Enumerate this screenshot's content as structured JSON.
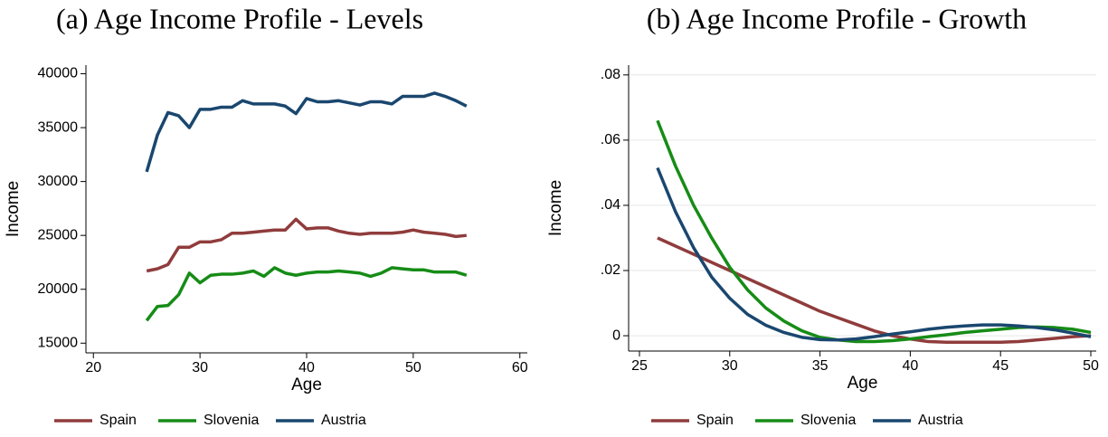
{
  "chart_data": [
    {
      "type": "line",
      "title": "(a) Age Income Profile - Levels",
      "x_label": "Age",
      "y_label": "Income",
      "x": [
        25,
        26,
        27,
        28,
        29,
        30,
        31,
        32,
        33,
        34,
        35,
        36,
        37,
        38,
        39,
        40,
        41,
        42,
        43,
        44,
        45,
        46,
        47,
        48,
        49,
        50,
        51,
        52,
        53,
        54,
        55
      ],
      "xlim": [
        19.3,
        60.7
      ],
      "xticks": [
        20,
        30,
        40,
        50,
        60
      ],
      "ylim": [
        14100,
        40800
      ],
      "yticks": [
        15000,
        20000,
        25000,
        30000,
        35000,
        40000
      ],
      "grid": false,
      "series": [
        {
          "name": "Spain",
          "color": "#903c3c",
          "values": [
            21700,
            21900,
            22300,
            23900,
            23900,
            24400,
            24400,
            24600,
            25200,
            25200,
            25300,
            25400,
            25500,
            25500,
            26500,
            25600,
            25700,
            25700,
            25400,
            25200,
            25100,
            25200,
            25200,
            25200,
            25300,
            25500,
            25300,
            25200,
            25100,
            24900,
            25000
          ]
        },
        {
          "name": "Slovenia",
          "color": "#168c16",
          "values": [
            17100,
            18400,
            18500,
            19500,
            21500,
            20600,
            21300,
            21400,
            21400,
            21500,
            21700,
            21200,
            22000,
            21500,
            21300,
            21500,
            21600,
            21600,
            21700,
            21600,
            21500,
            21200,
            21500,
            22000,
            21900,
            21800,
            21800,
            21600,
            21600,
            21600,
            21300
          ]
        },
        {
          "name": "Austria",
          "color": "#1a476f",
          "values": [
            30900,
            34300,
            36400,
            36100,
            35000,
            36700,
            36700,
            36900,
            36900,
            37500,
            37200,
            37200,
            37200,
            37000,
            36300,
            37700,
            37400,
            37400,
            37500,
            37300,
            37100,
            37400,
            37400,
            37200,
            37900,
            37900,
            37900,
            38200,
            37900,
            37500,
            37000
          ]
        }
      ]
    },
    {
      "type": "line",
      "title": "(b) Age Income Profile - Growth",
      "x_label": "Age",
      "y_label": "Income",
      "x": [
        26,
        27,
        28,
        29,
        30,
        31,
        32,
        33,
        34,
        35,
        36,
        37,
        38,
        39,
        40,
        41,
        42,
        43,
        44,
        45,
        46,
        47,
        48,
        49,
        50
      ],
      "xlim": [
        24.4,
        50.3
      ],
      "xticks": [
        25,
        30,
        35,
        40,
        45,
        50
      ],
      "ylim": [
        -0.0047,
        0.083
      ],
      "yticks": [
        0,
        {
          "value": 0.02,
          "label": ".02"
        },
        {
          "value": 0.04,
          "label": ".04"
        },
        {
          "value": 0.06,
          "label": ".06"
        },
        {
          "value": 0.08,
          "label": ".08"
        }
      ],
      "grid": true,
      "series": [
        {
          "name": "Spain",
          "color": "#903c3c",
          "values": [
            0.03,
            0.0275,
            0.025,
            0.0225,
            0.02,
            0.0175,
            0.015,
            0.0125,
            0.01,
            0.0075,
            0.0055,
            0.0035,
            0.0015,
            0.0,
            -0.001,
            -0.0018,
            -0.002,
            -0.002,
            -0.002,
            -0.002,
            -0.0018,
            -0.0013,
            -0.0008,
            -0.0003,
            0.0
          ]
        },
        {
          "name": "Slovenia",
          "color": "#168c16",
          "values": [
            0.066,
            0.052,
            0.04,
            0.03,
            0.021,
            0.014,
            0.0085,
            0.0045,
            0.0015,
            -0.0005,
            -0.0013,
            -0.0018,
            -0.0018,
            -0.0015,
            -0.001,
            -0.0003,
            0.0003,
            0.001,
            0.0015,
            0.002,
            0.0025,
            0.0027,
            0.0025,
            0.002,
            0.001
          ]
        },
        {
          "name": "Austria",
          "color": "#1a476f",
          "values": [
            0.0515,
            0.038,
            0.027,
            0.018,
            0.0115,
            0.0065,
            0.0032,
            0.001,
            -0.0005,
            -0.0012,
            -0.0013,
            -0.001,
            -0.0003,
            0.0005,
            0.0012,
            0.002,
            0.0026,
            0.003,
            0.0033,
            0.0033,
            0.003,
            0.0025,
            0.0018,
            0.0008,
            -0.0003
          ]
        }
      ]
    }
  ]
}
